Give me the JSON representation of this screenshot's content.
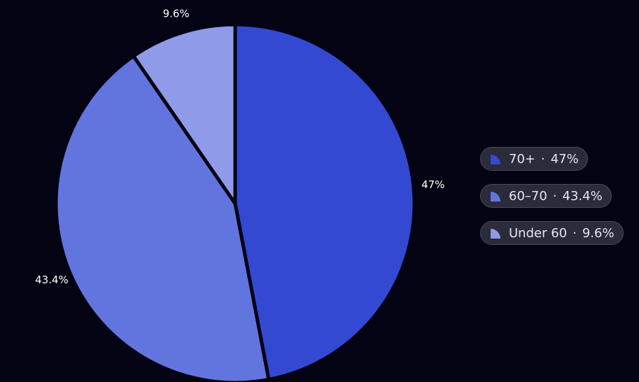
{
  "chart_data": {
    "type": "pie",
    "slices": [
      {
        "label": "70+",
        "value": 47,
        "value_label": "47%",
        "color": "#3349d1"
      },
      {
        "label": "60–70",
        "value": 43.4,
        "value_label": "43.4%",
        "color": "#6275de"
      },
      {
        "label": "Under 60",
        "value": 9.6,
        "value_label": "9.6%",
        "color": "#8f9ae9"
      }
    ],
    "legend_position": "right",
    "start": "top",
    "direction": "clockwise"
  },
  "legend": {
    "separator": "·",
    "items": [
      {
        "label": "70+",
        "percent": "47%"
      },
      {
        "label": "60–70",
        "percent": "43.4%"
      },
      {
        "label": "Under 60",
        "percent": "9.6%"
      }
    ]
  },
  "colors": {
    "background": "#030314",
    "slice_border": "#030314",
    "legend_bg": "#2b2b3b",
    "legend_border": "#4a4a5c"
  }
}
